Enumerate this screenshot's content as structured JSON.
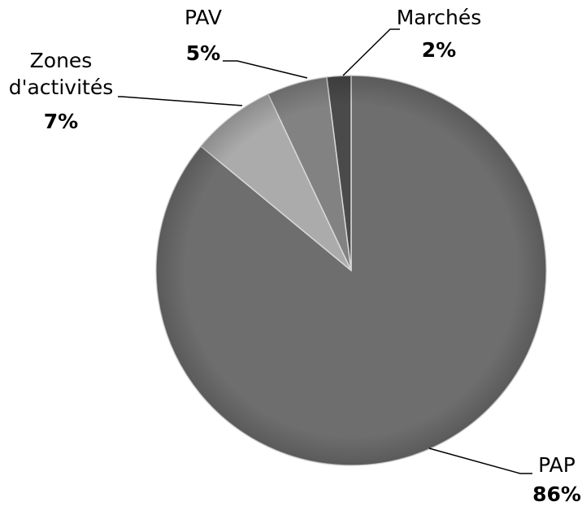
{
  "chart_data": {
    "type": "pie",
    "categories": [
      "PAP",
      "Zones d'activités",
      "PAV",
      "Marchés"
    ],
    "values": [
      86,
      7,
      5,
      2
    ],
    "value_labels": [
      "86%",
      "7%",
      "5%",
      "2%"
    ],
    "colors": [
      "#6e6e6e",
      "#ababab",
      "#828282",
      "#4a4a4a"
    ]
  }
}
